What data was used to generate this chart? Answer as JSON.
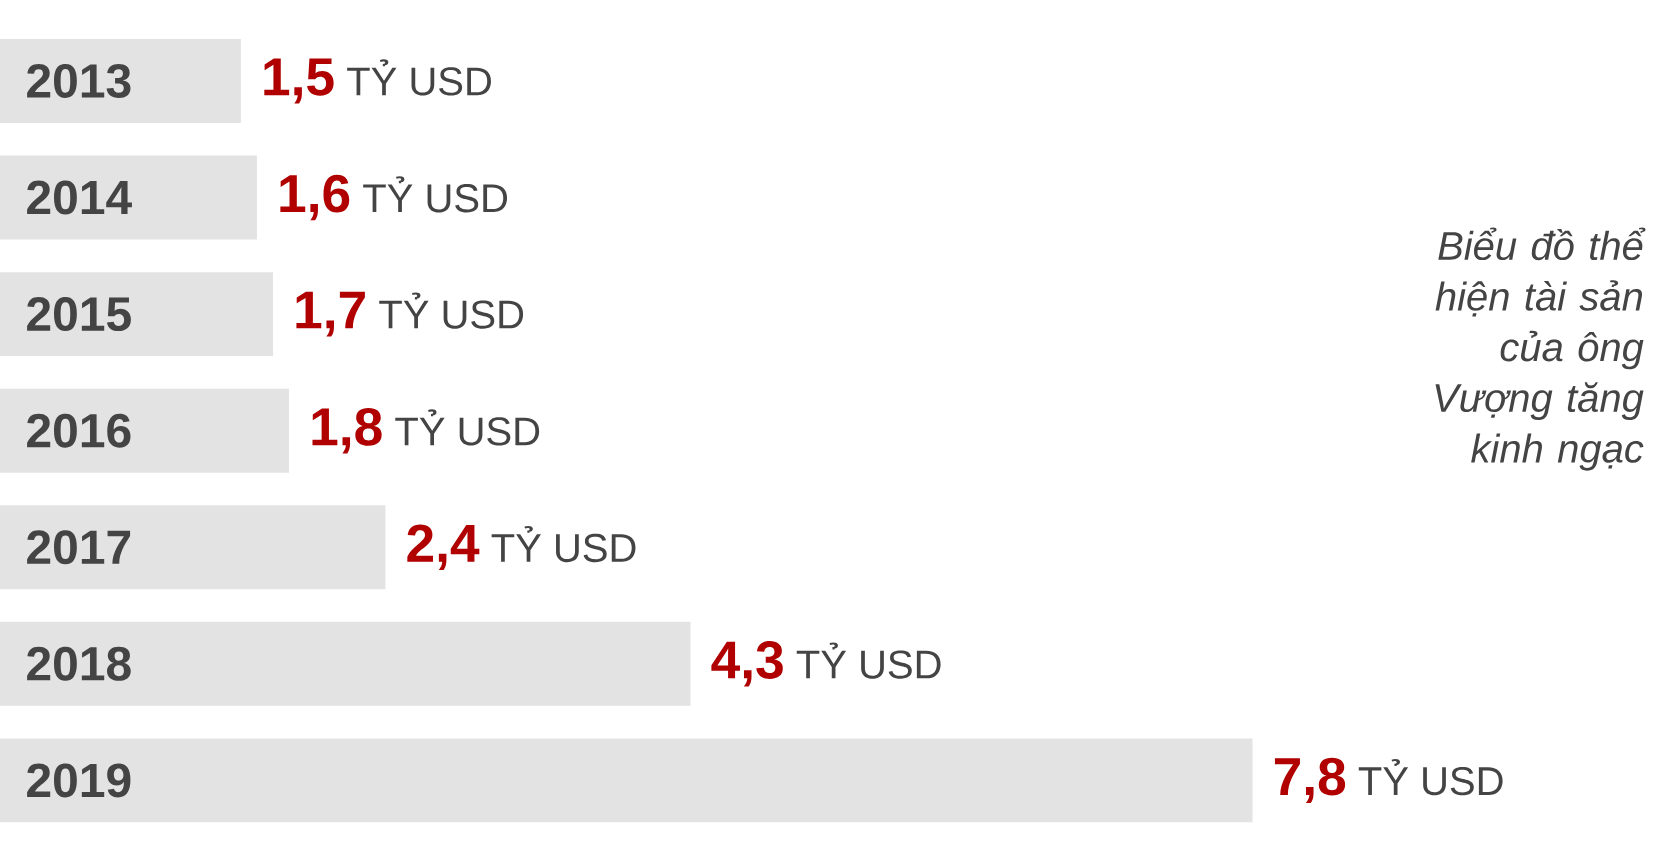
{
  "chart_data": {
    "type": "bar",
    "orientation": "horizontal",
    "categories": [
      "2013",
      "2014",
      "2015",
      "2016",
      "2017",
      "2018",
      "2019"
    ],
    "values": [
      1.5,
      1.6,
      1.7,
      1.8,
      2.4,
      4.3,
      7.8
    ],
    "value_labels": [
      "**1,5** TỶ USD",
      "**1,6** TỶ USD",
      "**1,7** TỶ USD",
      "**1,8** TỶ USD",
      "**2,4** TỶ USD",
      "**4,3** TỶ USD",
      "**7,8** TỶ USD"
    ],
    "color": "#e3e3e3",
    "annotations": [
      "Biểu đồ thể hiện tài sản của ông Vượng tăng kinh ngạc"
    ]
  }
}
